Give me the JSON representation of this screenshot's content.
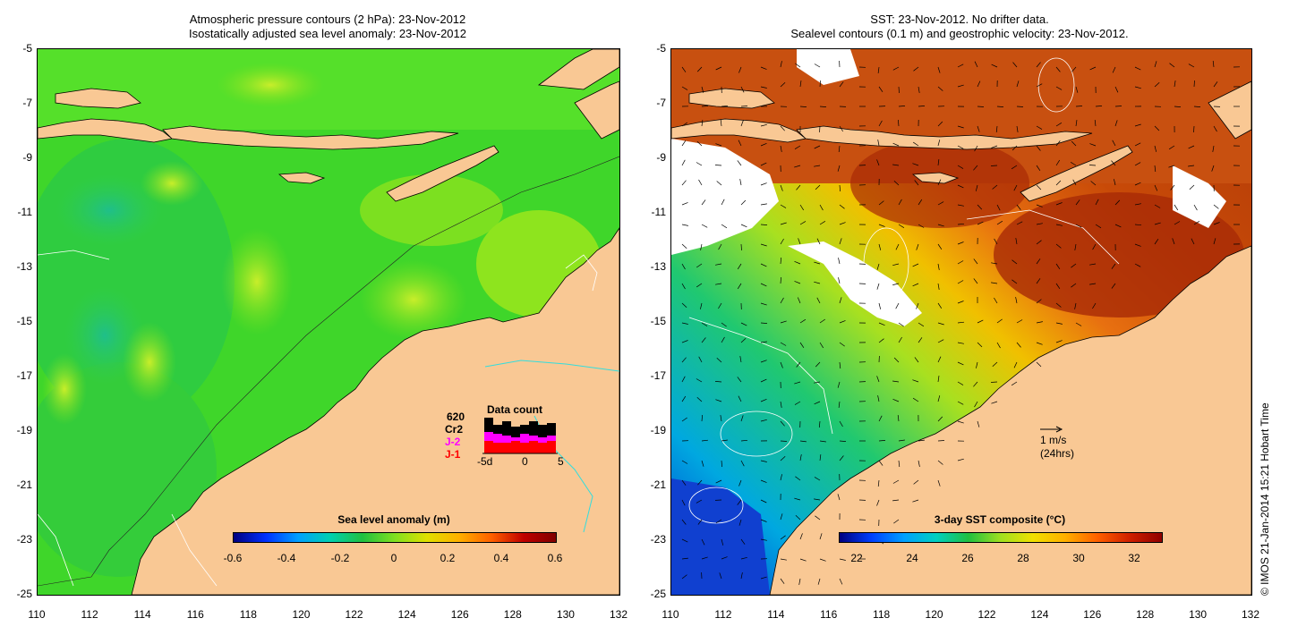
{
  "left_panel": {
    "title_line1": "Atmospheric pressure contours (2 hPa): 23-Nov-2012",
    "title_line2": "Isostatically adjusted sea level anomaly: 23-Nov-2012",
    "y_ticks": [
      "-5",
      "-7",
      "-9",
      "-11",
      "-13",
      "-15",
      "-17",
      "-19",
      "-21",
      "-23",
      "-25"
    ],
    "x_ticks": [
      "110",
      "112",
      "114",
      "116",
      "118",
      "120",
      "122",
      "124",
      "126",
      "128",
      "130",
      "132"
    ],
    "colorbar": {
      "label": "Sea level anomaly (m)",
      "ticks": [
        "-0.6",
        "-0.4",
        "-0.2",
        "0",
        "0.2",
        "0.4",
        "0.6"
      ]
    },
    "data_count": {
      "title": "Data count",
      "count": "620",
      "cr2": "Cr2",
      "j2": "J-2",
      "j1": "J-1",
      "axis_ticks": [
        "-5d",
        "0",
        "5"
      ],
      "colors": {
        "total": "#000000",
        "j2": "#ff00ff",
        "j1": "#ff0000"
      }
    }
  },
  "right_panel": {
    "title_line1": "SST: 23-Nov-2012. No drifter data.",
    "title_line2": "Sealevel contours (0.1 m) and geostrophic velocity: 23-Nov-2012.",
    "y_ticks": [
      "-5",
      "-7",
      "-9",
      "-11",
      "-13",
      "-15",
      "-17",
      "-19",
      "-21",
      "-23",
      "-25"
    ],
    "x_ticks": [
      "110",
      "112",
      "114",
      "116",
      "118",
      "120",
      "122",
      "124",
      "126",
      "128",
      "130",
      "132"
    ],
    "colorbar": {
      "label": "3-day SST composite (°C)",
      "ticks": [
        "22",
        "24",
        "26",
        "28",
        "30",
        "32"
      ]
    },
    "velocity_scale": {
      "line1": "1 m/s",
      "line2": "(24hrs)"
    }
  },
  "credit": "© IMOS 21-Jan-2014 15:21 Hobart Time",
  "colors": {
    "land": "#f9c894",
    "sla_ocean": "#44dd22",
    "sst_warm": "#c44408",
    "sst_cool": "#22aadd"
  }
}
